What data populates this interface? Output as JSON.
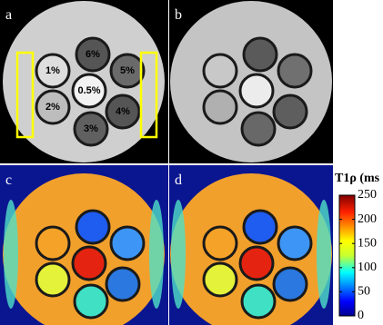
{
  "panels": [
    {
      "label": "a"
    },
    {
      "label": "b"
    },
    {
      "label": "c"
    },
    {
      "label": "d"
    }
  ],
  "vials": [
    "6%",
    "5%",
    "4%",
    "3%",
    "2%",
    "1%",
    "0.5%"
  ],
  "colorbar": {
    "title": "T1ρ (ms",
    "lim": [
      0,
      250
    ],
    "ticks": [
      0,
      50,
      100,
      150,
      200,
      250
    ]
  }
}
